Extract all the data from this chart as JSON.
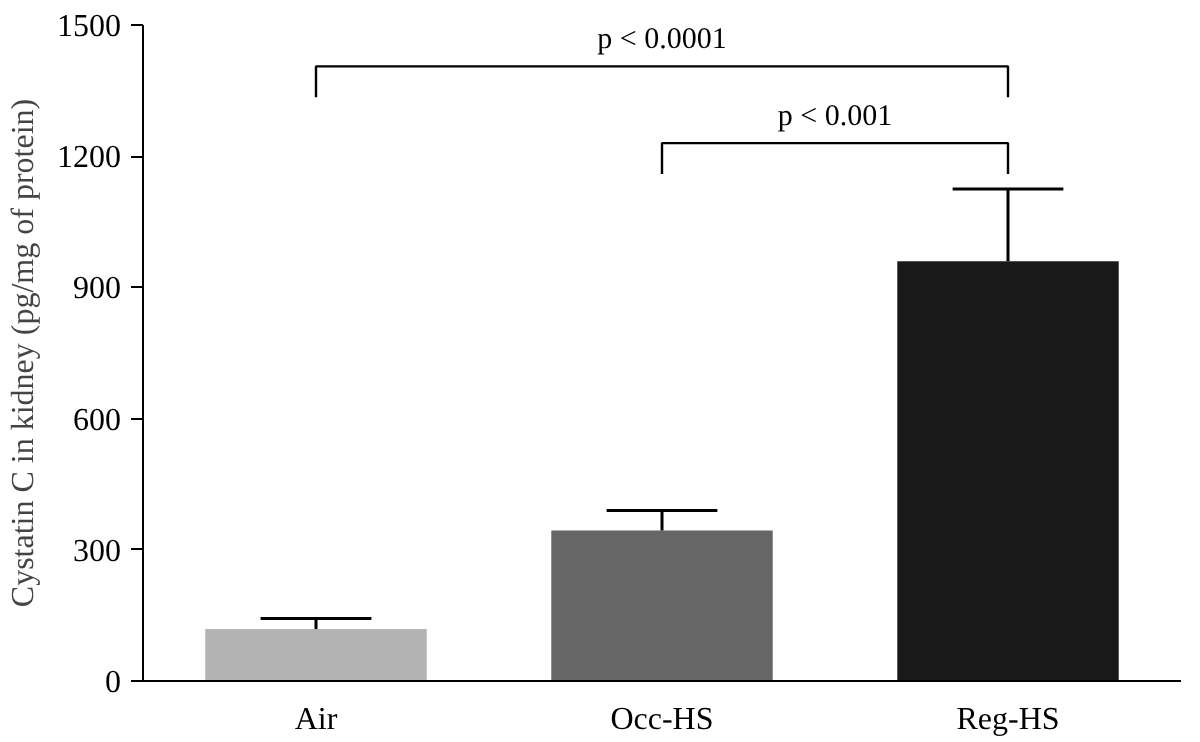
{
  "chart_data": {
    "type": "bar",
    "ylabel": "Cystatin C in kidney (pg/mg of protein)",
    "categories": [
      "Air",
      "Occ-HS",
      "Reg-HS"
    ],
    "values": [
      119,
      344,
      960
    ],
    "errors": [
      [
        119,
        143
      ],
      [
        344,
        390
      ],
      [
        960,
        1125
      ]
    ],
    "colors": [
      "#b3b3b3",
      "#666666",
      "#1a1a1a"
    ],
    "ylim": [
      0,
      1500
    ],
    "yticks": [
      0,
      300,
      600,
      900,
      1200,
      1500
    ],
    "annotations": [
      "p < 0.0001",
      "p < 0.001"
    ],
    "grid": false
  }
}
